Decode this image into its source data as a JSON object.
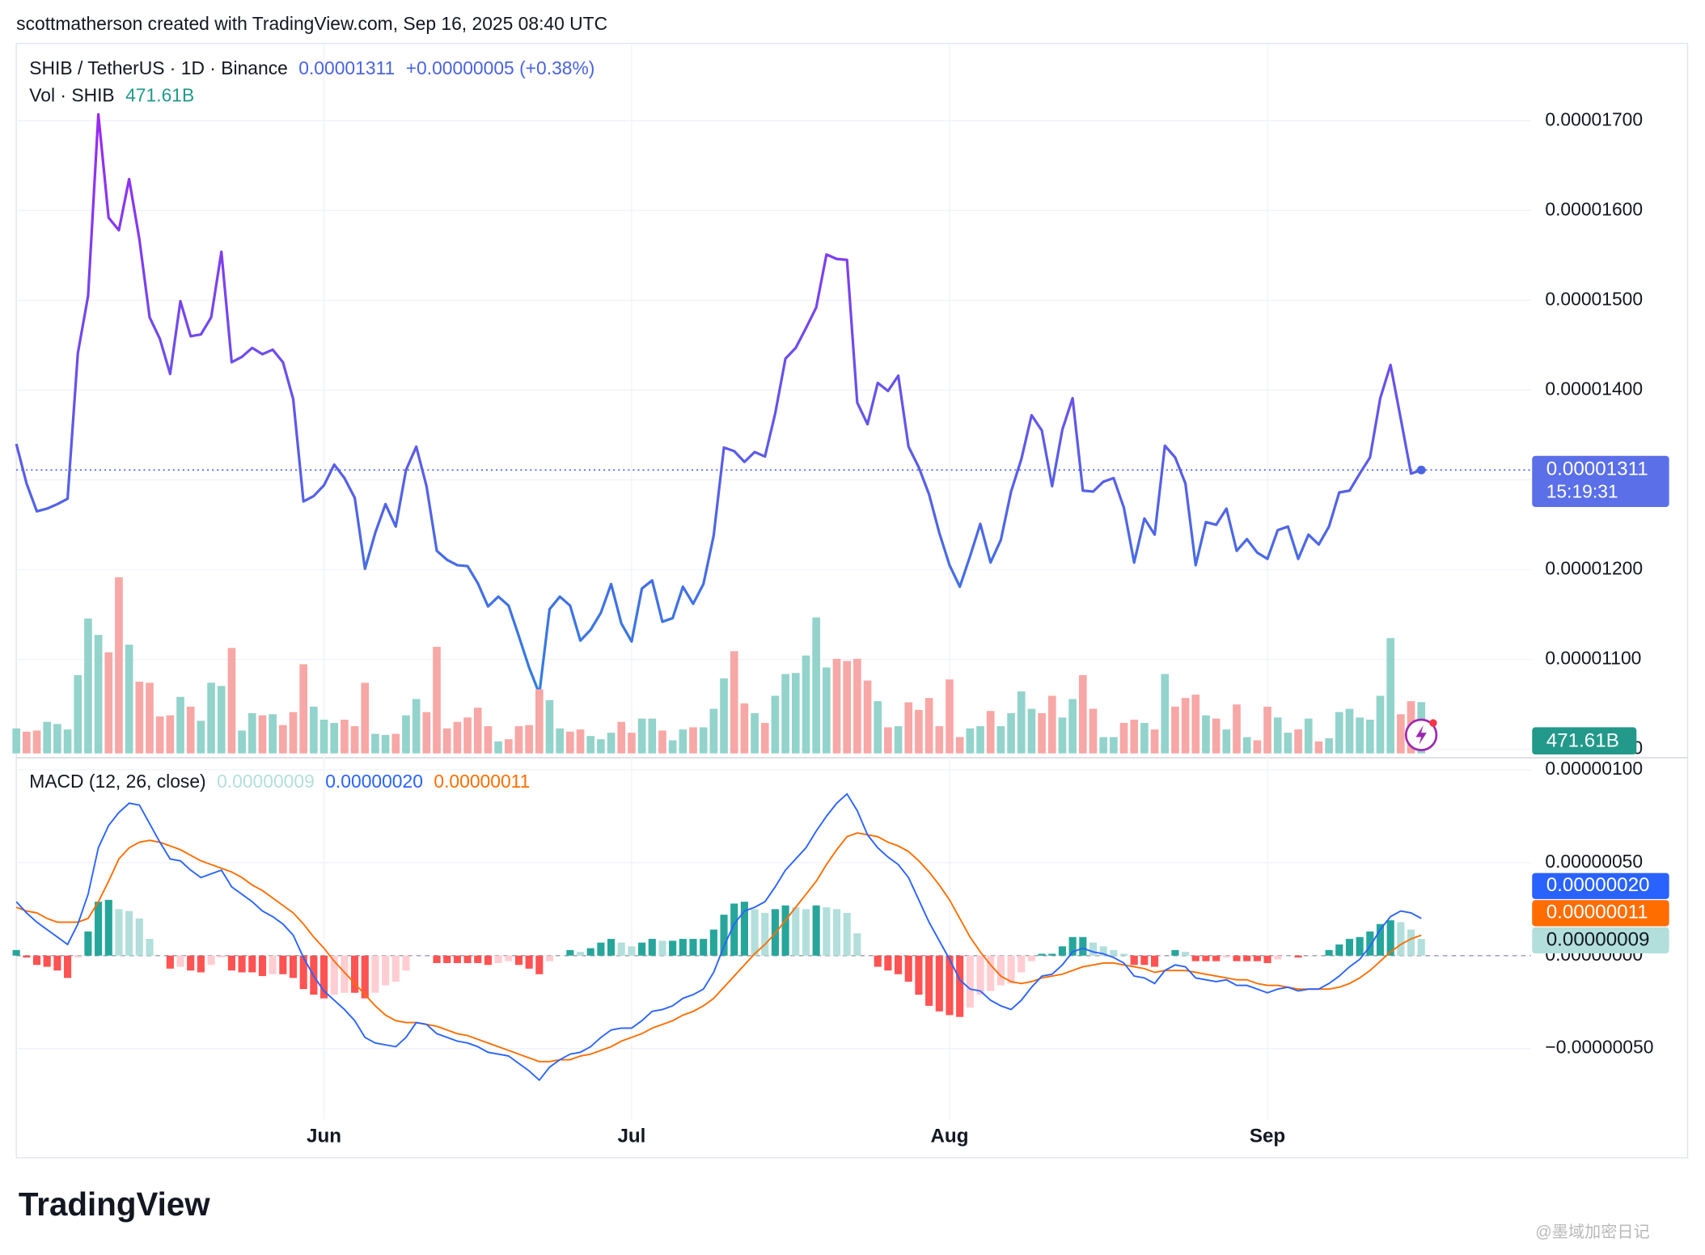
{
  "header": {
    "credit": "scottmatherson created with TradingView.com, Sep 16, 2025 08:40 UTC",
    "logo": "TradingView",
    "watermark": "@墨域加密日记"
  },
  "chart_data": [
    {
      "type": "line",
      "title": "SHIB / TetherUS · 1D · Binance",
      "value_label": "0.00001311",
      "change_label": "+0.00000005 (+0.38%)",
      "countdown": "15:19:31",
      "gradient": [
        "#9c27f5",
        "#2f80e0"
      ],
      "label_color": "#4a63e0",
      "grid": true,
      "xlim": [
        0,
        147.7
      ],
      "xticks": [
        {
          "value": 30,
          "label": "Jun"
        },
        {
          "value": 60,
          "label": "Jul"
        },
        {
          "value": 91,
          "label": "Aug"
        },
        {
          "value": 122,
          "label": "Sep"
        }
      ],
      "ylim": [
        9.954e-06,
        1.786e-05
      ],
      "yticks": [
        {
          "value": 1e-05,
          "label": "0.00001000"
        },
        {
          "value": 1.1e-05,
          "label": "0.00001100"
        },
        {
          "value": 1.2e-05,
          "label": "0.00001200"
        },
        {
          "value": 1.3e-05,
          "label": "0.00001300"
        },
        {
          "value": 1.4e-05,
          "label": "0.00001400"
        },
        {
          "value": 1.5e-05,
          "label": "0.00001500"
        },
        {
          "value": 1.6e-05,
          "label": "0.00001600"
        },
        {
          "value": 1.7e-05,
          "label": "0.00001700"
        }
      ],
      "values": [
        1.34e-05,
        1.296e-05,
        1.265e-05,
        1.268e-05,
        1.273e-05,
        1.279e-05,
        1.441e-05,
        1.505e-05,
        1.707e-05,
        1.592e-05,
        1.578e-05,
        1.635e-05,
        1.568e-05,
        1.481e-05,
        1.457e-05,
        1.418e-05,
        1.499e-05,
        1.46e-05,
        1.462e-05,
        1.481e-05,
        1.554e-05,
        1.431e-05,
        1.437e-05,
        1.447e-05,
        1.44e-05,
        1.445e-05,
        1.431e-05,
        1.39e-05,
        1.276e-05,
        1.282e-05,
        1.294e-05,
        1.317e-05,
        1.302e-05,
        1.28e-05,
        1.201e-05,
        1.241e-05,
        1.273e-05,
        1.248e-05,
        1.311e-05,
        1.337e-05,
        1.293e-05,
        1.221e-05,
        1.211e-05,
        1.205e-05,
        1.204e-05,
        1.185e-05,
        1.159e-05,
        1.17e-05,
        1.16e-05,
        1.126e-05,
        1.091e-05,
        1.062e-05,
        1.156e-05,
        1.17e-05,
        1.16e-05,
        1.121e-05,
        1.133e-05,
        1.152e-05,
        1.184e-05,
        1.14e-05,
        1.12e-05,
        1.179e-05,
        1.188e-05,
        1.142e-05,
        1.146e-05,
        1.181e-05,
        1.162e-05,
        1.184e-05,
        1.238e-05,
        1.336e-05,
        1.332e-05,
        1.32e-05,
        1.331e-05,
        1.326e-05,
        1.374e-05,
        1.435e-05,
        1.447e-05,
        1.469e-05,
        1.492e-05,
        1.551e-05,
        1.546e-05,
        1.545e-05,
        1.386e-05,
        1.362e-05,
        1.408e-05,
        1.399e-05,
        1.416e-05,
        1.337e-05,
        1.314e-05,
        1.284e-05,
        1.241e-05,
        1.205e-05,
        1.181e-05,
        1.215e-05,
        1.251e-05,
        1.208e-05,
        1.233e-05,
        1.287e-05,
        1.323e-05,
        1.372e-05,
        1.355e-05,
        1.293e-05,
        1.356e-05,
        1.391e-05,
        1.288e-05,
        1.287e-05,
        1.298e-05,
        1.302e-05,
        1.269e-05,
        1.208e-05,
        1.257e-05,
        1.239e-05,
        1.338e-05,
        1.325e-05,
        1.296e-05,
        1.205e-05,
        1.253e-05,
        1.25e-05,
        1.268e-05,
        1.221e-05,
        1.234e-05,
        1.219e-05,
        1.212e-05,
        1.244e-05,
        1.248e-05,
        1.212e-05,
        1.239e-05,
        1.228e-05,
        1.248e-05,
        1.286e-05,
        1.288e-05,
        1.307e-05,
        1.325e-05,
        1.391e-05,
        1.428e-05,
        1.368e-05,
        1.307e-05,
        1.311e-05
      ]
    },
    {
      "type": "volume",
      "title": "Vol · SHIB",
      "value_label": "471.61B",
      "up_color": "#92d3cb",
      "down_color": "#f7a7a5",
      "badge_color": "#22998a",
      "label_color": "#22998a",
      "ylim": [
        0,
        1630
      ],
      "values": [
        230,
        200,
        210,
        290,
        270,
        220,
        720,
        1240,
        1090,
        930,
        1620,
        1000,
        660,
        650,
        340,
        350,
        520,
        430,
        300,
        650,
        620,
        970,
        210,
        370,
        350,
        360,
        260,
        380,
        820,
        430,
        310,
        280,
        310,
        250,
        650,
        180,
        170,
        180,
        350,
        500,
        380,
        980,
        230,
        290,
        330,
        420,
        250,
        110,
        130,
        250,
        260,
        590,
        490,
        230,
        200,
        220,
        160,
        130,
        190,
        290,
        190,
        320,
        320,
        210,
        120,
        220,
        240,
        240,
        410,
        690,
        940,
        460,
        370,
        280,
        530,
        730,
        740,
        900,
        1250,
        790,
        870,
        850,
        870,
        670,
        480,
        240,
        250,
        470,
        400,
        510,
        250,
        680,
        150,
        230,
        250,
        390,
        250,
        370,
        570,
        410,
        370,
        530,
        330,
        500,
        720,
        410,
        150,
        150,
        280,
        310,
        280,
        220,
        730,
        430,
        510,
        540,
        350,
        320,
        220,
        450,
        150,
        120,
        430,
        330,
        190,
        220,
        320,
        110,
        140,
        380,
        410,
        330,
        310,
        530,
        1060,
        360,
        480,
        471.61
      ]
    },
    {
      "type": "macd",
      "title": "MACD (12, 26, close)",
      "zero_line": true,
      "ylim": [
        -8.83e-07,
        1.047e-06
      ],
      "yticks": [
        {
          "value": 1e-06,
          "label": "0.00000100"
        },
        {
          "value": 5e-07,
          "label": "0.00000050"
        },
        {
          "value": 0,
          "label": "0.00000000"
        },
        {
          "value": -5e-07,
          "label": "−0.00000050"
        }
      ],
      "histogram": {
        "label": "0.00000009",
        "colors": [
          "#26a69a",
          "#b2dfdb",
          "#ff5252",
          "#ffcdd2"
        ],
        "values": [
          3e-08,
          -1e-08,
          -5e-08,
          -6e-08,
          -8e-08,
          -1.2e-07,
          -1e-08,
          1.3e-07,
          2.9e-07,
          3e-07,
          2.5e-07,
          2.4e-07,
          2e-07,
          9e-08,
          0,
          -7e-08,
          -6e-08,
          -8e-08,
          -9e-08,
          -5e-08,
          -1e-08,
          -8e-08,
          -9e-08,
          -9e-08,
          -1.1e-07,
          -1e-07,
          -1e-07,
          -1.2e-07,
          -1.8e-07,
          -2.1e-07,
          -2.3e-07,
          -2.1e-07,
          -2e-07,
          -2e-07,
          -2.3e-07,
          -2e-07,
          -1.6e-07,
          -1.4e-07,
          -8e-08,
          0,
          0,
          -4e-08,
          -4e-08,
          -4e-08,
          -4e-08,
          -4e-08,
          -5e-08,
          -4e-08,
          -3e-08,
          -5e-08,
          -7e-08,
          -1e-07,
          -3e-08,
          0,
          3e-08,
          2e-08,
          4e-08,
          7e-08,
          9e-08,
          7e-08,
          5e-08,
          7e-08,
          9e-08,
          8e-08,
          8e-08,
          9e-08,
          9e-08,
          9e-08,
          1.4e-07,
          2.2e-07,
          2.8e-07,
          2.9e-07,
          2.5e-07,
          2.3e-07,
          2.5e-07,
          2.7e-07,
          2.6e-07,
          2.5e-07,
          2.7e-07,
          2.6e-07,
          2.5e-07,
          2.3e-07,
          1.2e-07,
          0,
          -6e-08,
          -8e-08,
          -1e-07,
          -1.4e-07,
          -2.1e-07,
          -2.7e-07,
          -3e-07,
          -3.2e-07,
          -3.3e-07,
          -2.8e-07,
          -2.1e-07,
          -1.9e-07,
          -1.6e-07,
          -1.5e-07,
          -9e-08,
          -3e-08,
          1e-08,
          1e-08,
          5e-08,
          1e-07,
          1e-07,
          7e-08,
          5e-08,
          3e-08,
          1e-08,
          -5e-08,
          -5e-08,
          -6e-08,
          0,
          3e-08,
          2e-08,
          -3e-08,
          -3e-08,
          -3e-08,
          -1e-08,
          -3e-08,
          -3e-08,
          -3e-08,
          -4e-08,
          -2e-08,
          0,
          -1e-08,
          0,
          0,
          3e-08,
          6e-08,
          9e-08,
          1e-07,
          1.3e-07,
          1.7e-07,
          1.9e-07,
          1.8e-07,
          1.4e-07,
          9e-08
        ]
      },
      "macd": {
        "label": "0.00000020",
        "color": "#2962ff",
        "values": [
          2.9e-07,
          2.3e-07,
          1.8e-07,
          1.4e-07,
          1e-07,
          6e-08,
          1.7e-07,
          3.3e-07,
          5.8e-07,
          7e-07,
          7.7e-07,
          8.2e-07,
          8.1e-07,
          7.1e-07,
          6.1e-07,
          5.2e-07,
          5.1e-07,
          4.6e-07,
          4.2e-07,
          4.4e-07,
          4.6e-07,
          3.7e-07,
          3.3e-07,
          2.9e-07,
          2.4e-07,
          2.1e-07,
          1.7e-07,
          1.1e-07,
          -1e-08,
          -1.1e-07,
          -1.9e-07,
          -2.4e-07,
          -2.9e-07,
          -3.5e-07,
          -4.4e-07,
          -4.7e-07,
          -4.8e-07,
          -4.9e-07,
          -4.4e-07,
          -3.6e-07,
          -3.7e-07,
          -4.2e-07,
          -4.4e-07,
          -4.6e-07,
          -4.7e-07,
          -4.9e-07,
          -5.2e-07,
          -5.3e-07,
          -5.4e-07,
          -5.8e-07,
          -6.2e-07,
          -6.7e-07,
          -6e-07,
          -5.6e-07,
          -5.3e-07,
          -5.2e-07,
          -4.9e-07,
          -4.4e-07,
          -4e-07,
          -3.9e-07,
          -3.9e-07,
          -3.5e-07,
          -3e-07,
          -2.9e-07,
          -2.7e-07,
          -2.3e-07,
          -2.1e-07,
          -1.8e-07,
          -9e-08,
          5e-08,
          1.7e-07,
          2.4e-07,
          2.6e-07,
          2.9e-07,
          3.7e-07,
          4.6e-07,
          5.2e-07,
          5.8e-07,
          6.7e-07,
          7.5e-07,
          8.2e-07,
          8.7e-07,
          7.8e-07,
          6.5e-07,
          5.8e-07,
          5.3e-07,
          4.9e-07,
          4.2e-07,
          3e-07,
          1.8e-07,
          8e-08,
          -2e-08,
          -1.3e-07,
          -1.8e-07,
          -1.9e-07,
          -2.4e-07,
          -2.7e-07,
          -2.9e-07,
          -2.4e-07,
          -1.7e-07,
          -1.1e-07,
          -1e-07,
          -5e-08,
          2e-08,
          4e-08,
          2e-08,
          1e-08,
          -1e-08,
          -4e-08,
          -1.1e-07,
          -1.2e-07,
          -1.5e-07,
          -8e-08,
          -5e-08,
          -6e-08,
          -1.2e-07,
          -1.3e-07,
          -1.4e-07,
          -1.3e-07,
          -1.6e-07,
          -1.6e-07,
          -1.8e-07,
          -2e-07,
          -1.8e-07,
          -1.7e-07,
          -1.9e-07,
          -1.8e-07,
          -1.8e-07,
          -1.5e-07,
          -1.1e-07,
          -6e-08,
          -2e-08,
          5e-08,
          1.4e-07,
          2.1e-07,
          2.4e-07,
          2.3e-07,
          2e-07
        ]
      },
      "signal": {
        "label": "0.00000011",
        "color": "#ff6d00",
        "values": [
          2.6e-07,
          2.4e-07,
          2.3e-07,
          2e-07,
          1.8e-07,
          1.8e-07,
          1.8e-07,
          2e-07,
          2.9e-07,
          4e-07,
          5.2e-07,
          5.8e-07,
          6.1e-07,
          6.2e-07,
          6.1e-07,
          5.9e-07,
          5.7e-07,
          5.4e-07,
          5.1e-07,
          4.9e-07,
          4.7e-07,
          4.5e-07,
          4.2e-07,
          3.8e-07,
          3.5e-07,
          3.1e-07,
          2.7e-07,
          2.3e-07,
          1.7e-07,
          1e-07,
          4e-08,
          -3e-08,
          -9e-08,
          -1.5e-07,
          -2.1e-07,
          -2.7e-07,
          -3.2e-07,
          -3.5e-07,
          -3.6e-07,
          -3.6e-07,
          -3.7e-07,
          -3.8e-07,
          -4e-07,
          -4.2e-07,
          -4.3e-07,
          -4.5e-07,
          -4.7e-07,
          -4.9e-07,
          -5.1e-07,
          -5.3e-07,
          -5.5e-07,
          -5.7e-07,
          -5.7e-07,
          -5.6e-07,
          -5.6e-07,
          -5.4e-07,
          -5.3e-07,
          -5.1e-07,
          -4.9e-07,
          -4.6e-07,
          -4.4e-07,
          -4.2e-07,
          -3.9e-07,
          -3.7e-07,
          -3.5e-07,
          -3.2e-07,
          -3e-07,
          -2.7e-07,
          -2.3e-07,
          -1.7e-07,
          -1.1e-07,
          -5e-08,
          1e-08,
          6e-08,
          1.2e-07,
          1.9e-07,
          2.6e-07,
          3.3e-07,
          4e-07,
          4.9e-07,
          5.7e-07,
          6.4e-07,
          6.6e-07,
          6.5e-07,
          6.4e-07,
          6.1e-07,
          5.9e-07,
          5.6e-07,
          5.1e-07,
          4.5e-07,
          3.8e-07,
          3e-07,
          2e-07,
          1e-07,
          2e-08,
          -5e-08,
          -1.1e-07,
          -1.4e-07,
          -1.5e-07,
          -1.4e-07,
          -1.2e-07,
          -1.1e-07,
          -1e-07,
          -8e-08,
          -6e-08,
          -5e-08,
          -4e-08,
          -4e-08,
          -5e-08,
          -6e-08,
          -7e-08,
          -9e-08,
          -8e-08,
          -8e-08,
          -8e-08,
          -9e-08,
          -1e-07,
          -1.1e-07,
          -1.2e-07,
          -1.3e-07,
          -1.3e-07,
          -1.5e-07,
          -1.6e-07,
          -1.6e-07,
          -1.7e-07,
          -1.8e-07,
          -1.8e-07,
          -1.8e-07,
          -1.8e-07,
          -1.7e-07,
          -1.5e-07,
          -1.2e-07,
          -8e-08,
          -3e-08,
          2e-08,
          6e-08,
          9e-08,
          1.1e-07
        ]
      }
    }
  ]
}
